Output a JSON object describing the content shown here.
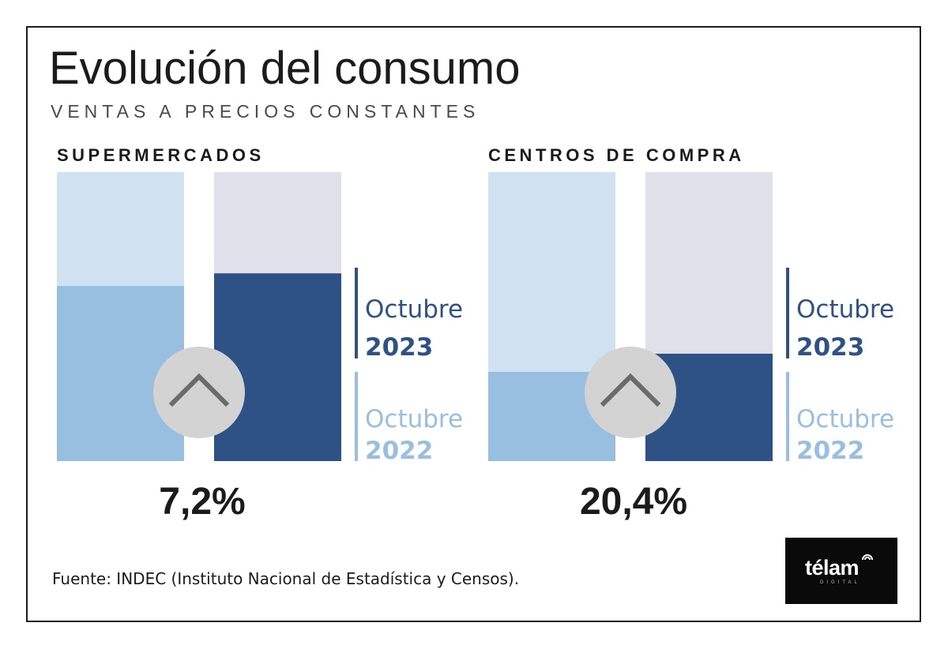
{
  "title": "Evolución del consumo",
  "subtitle": "VENTAS A PRECIOS CONSTANTES",
  "source": "Fuente: INDEC (Instituto Nacional de Estadística y Censos).",
  "logo": {
    "word": "télam",
    "sub": "DIGITAL"
  },
  "colors": {
    "oct2022_fill": "#98bfe0",
    "oct2022_track": "#d0e2f1",
    "oct2023_fill": "#2e5285",
    "oct2023_track": "#e0e0ea",
    "arrow_circle": "#d3d3d3",
    "arrow_stroke": "#6b6b6b"
  },
  "chart_data": [
    {
      "type": "bar",
      "title": "SUPERMERCADOS",
      "categories": [
        "Octubre 2022",
        "Octubre 2023"
      ],
      "values": [
        100,
        107.2
      ],
      "change_label": "7,2%",
      "indicator": "arrow-up-icon"
    },
    {
      "type": "bar",
      "title": "CENTROS DE COMPRA",
      "categories": [
        "Octubre 2022",
        "Octubre 2023"
      ],
      "values": [
        100,
        120.4
      ],
      "change_label": "20,4%",
      "indicator": "arrow-up-icon"
    }
  ],
  "legend": [
    {
      "month": "Octubre",
      "year": "2023"
    },
    {
      "month": "Octubre",
      "year": "2022"
    }
  ]
}
